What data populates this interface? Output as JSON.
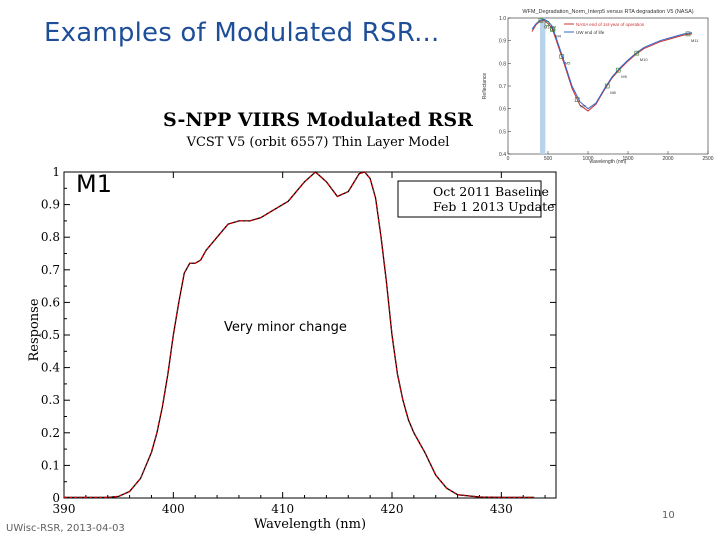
{
  "slide": {
    "title": "Examples of Modulated RSR...",
    "footer": "UWisc-RSR, 2013-04-03",
    "page_number": "10",
    "annotation": "Very minor change",
    "band_label": "M1"
  },
  "chart_data": [
    {
      "type": "line",
      "title": "S-NPP VIIRS Modulated RSR",
      "subtitle": "VCST V5 (orbit 6557) Thin Layer Model",
      "xlabel": "Wavelength (nm)",
      "ylabel": "Response",
      "xlim": [
        390,
        435
      ],
      "ylim": [
        0,
        1
      ],
      "xticks": [
        "390",
        "400",
        "410",
        "420",
        "430"
      ],
      "yticks": [
        "0",
        "0.1",
        "0.2",
        "0.3",
        "0.4",
        "0.5",
        "0.6",
        "0.7",
        "0.8",
        "0.9",
        "1"
      ],
      "legend": [
        "Oct 2011 Baseline",
        "Feb 1 2013 Update"
      ],
      "series": [
        {
          "name": "Oct 2011 Baseline",
          "color": "#000000",
          "x": [
            390,
            392,
            394,
            395,
            396,
            397,
            398,
            398.5,
            399,
            399.5,
            400,
            400.5,
            401,
            401.5,
            402,
            402.5,
            403,
            404,
            405,
            406,
            407,
            408,
            409,
            410,
            410.5,
            411,
            412,
            413,
            414,
            415,
            416,
            417,
            417.5,
            418,
            418.5,
            419,
            419.5,
            420,
            420.5,
            421,
            421.5,
            422,
            423,
            424,
            425,
            426,
            428,
            430,
            433
          ],
          "y": [
            0.002,
            0.002,
            0.002,
            0.005,
            0.02,
            0.06,
            0.14,
            0.2,
            0.28,
            0.38,
            0.5,
            0.6,
            0.69,
            0.72,
            0.72,
            0.73,
            0.76,
            0.8,
            0.84,
            0.85,
            0.85,
            0.86,
            0.88,
            0.9,
            0.91,
            0.93,
            0.97,
            1.0,
            0.97,
            0.925,
            0.94,
            0.995,
            1.0,
            0.98,
            0.92,
            0.8,
            0.66,
            0.5,
            0.38,
            0.3,
            0.24,
            0.2,
            0.14,
            0.07,
            0.03,
            0.01,
            0.003,
            0.002,
            0.002
          ]
        },
        {
          "name": "Feb 1 2013 Update",
          "color": "#cc0000",
          "x": [
            390,
            392,
            394,
            395,
            396,
            397,
            398,
            398.5,
            399,
            399.5,
            400,
            400.5,
            401,
            401.5,
            402,
            402.5,
            403,
            404,
            405,
            406,
            407,
            408,
            409,
            410,
            410.5,
            411,
            412,
            413,
            414,
            415,
            416,
            417,
            417.5,
            418,
            418.5,
            419,
            419.5,
            420,
            420.5,
            421,
            421.5,
            422,
            423,
            424,
            425,
            426,
            428,
            430,
            433
          ],
          "y": [
            0.002,
            0.002,
            0.002,
            0.005,
            0.02,
            0.06,
            0.14,
            0.2,
            0.28,
            0.38,
            0.5,
            0.6,
            0.69,
            0.72,
            0.72,
            0.73,
            0.76,
            0.8,
            0.84,
            0.85,
            0.85,
            0.86,
            0.88,
            0.9,
            0.91,
            0.93,
            0.97,
            1.0,
            0.97,
            0.925,
            0.94,
            0.995,
            1.0,
            0.98,
            0.92,
            0.8,
            0.66,
            0.5,
            0.38,
            0.3,
            0.24,
            0.2,
            0.14,
            0.07,
            0.03,
            0.01,
            0.003,
            0.002,
            0.002
          ]
        }
      ]
    },
    {
      "type": "line",
      "title": "WFM_Degradation_Norm_Interp5 versus RTA degradation V5 (NASA)",
      "xlabel": "wavelength (nm)",
      "ylabel": "Reflectance",
      "xlim": [
        0,
        2500
      ],
      "ylim": [
        0.4,
        1.0
      ],
      "xticks": [
        "0",
        "500",
        "1000",
        "1500",
        "2000",
        "2500"
      ],
      "yticks": [
        "0.4",
        "0.5",
        "0.6",
        "0.7",
        "0.8",
        "0.9",
        "1.0"
      ],
      "legend": [
        "NASA end of 1st-year of operation",
        "UW end of life"
      ],
      "band_markers": [
        "M1/M2",
        "M3",
        "M4",
        "M5",
        "M7",
        "M8",
        "M9",
        "M10",
        "M11"
      ],
      "series": [
        {
          "name": "NASA end of 1st-year of operation",
          "color": "#cc3333",
          "x": [
            300,
            350,
            400,
            450,
            500,
            550,
            600,
            700,
            800,
            900,
            1000,
            1100,
            1200,
            1300,
            1400,
            1500,
            1600,
            1700,
            1800,
            1900,
            2000,
            2100,
            2200,
            2300
          ],
          "y": [
            0.94,
            0.97,
            0.985,
            0.99,
            0.975,
            0.955,
            0.905,
            0.8,
            0.69,
            0.615,
            0.59,
            0.62,
            0.68,
            0.735,
            0.775,
            0.81,
            0.84,
            0.865,
            0.88,
            0.895,
            0.905,
            0.915,
            0.925,
            0.93
          ]
        },
        {
          "name": "UW end of life",
          "color": "#3366cc",
          "x": [
            300,
            350,
            400,
            450,
            500,
            550,
            600,
            700,
            800,
            900,
            1000,
            1100,
            1200,
            1300,
            1400,
            1500,
            1600,
            1700,
            1800,
            1900,
            2000,
            2100,
            2200,
            2300
          ],
          "y": [
            0.95,
            0.975,
            0.99,
            0.995,
            0.985,
            0.965,
            0.915,
            0.81,
            0.7,
            0.63,
            0.6,
            0.625,
            0.685,
            0.74,
            0.78,
            0.815,
            0.845,
            0.87,
            0.885,
            0.9,
            0.91,
            0.92,
            0.93,
            0.935
          ]
        }
      ]
    }
  ]
}
